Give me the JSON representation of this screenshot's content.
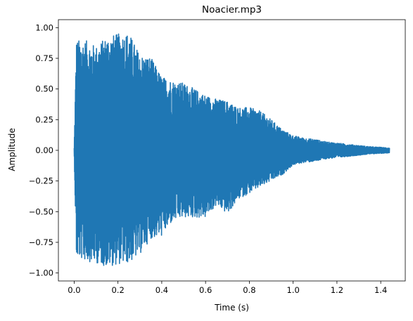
{
  "chart_data": {
    "type": "line",
    "title": "Noacier.mp3",
    "xlabel": "Time (s)",
    "ylabel": "Amplitude",
    "xlim": [
      -0.072,
      1.512
    ],
    "ylim": [
      -1.065,
      1.065
    ],
    "xticks": [
      0.0,
      0.2,
      0.4,
      0.6,
      0.8,
      1.0,
      1.2,
      1.4
    ],
    "xtick_labels": [
      "0.0",
      "0.2",
      "0.4",
      "0.6",
      "0.8",
      "1.0",
      "1.2",
      "1.4"
    ],
    "yticks": [
      -1.0,
      -0.75,
      -0.5,
      -0.25,
      0.0,
      0.25,
      0.5,
      0.75,
      1.0
    ],
    "ytick_labels": [
      "−1.00",
      "−0.75",
      "−0.50",
      "−0.25",
      "0.00",
      "0.25",
      "0.50",
      "0.75",
      "1.00"
    ],
    "grid": false,
    "series": [
      {
        "color": "#1f77b4",
        "duration_s": 1.44,
        "attack_s": 0.01,
        "peak_amplitude": 0.96,
        "end_amplitude": 0.02,
        "min_amplitude": -0.97,
        "envelope": [
          {
            "t": 0.0,
            "max": 0.02,
            "min": -0.02
          },
          {
            "t": 0.01,
            "max": 0.9,
            "min": -0.88
          },
          {
            "t": 0.05,
            "max": 0.9,
            "min": -0.9
          },
          {
            "t": 0.1,
            "max": 0.85,
            "min": -0.92
          },
          {
            "t": 0.15,
            "max": 0.93,
            "min": -0.95
          },
          {
            "t": 0.2,
            "max": 0.95,
            "min": -0.93
          },
          {
            "t": 0.25,
            "max": 0.96,
            "min": -0.92
          },
          {
            "t": 0.3,
            "max": 0.78,
            "min": -0.85
          },
          {
            "t": 0.35,
            "max": 0.76,
            "min": -0.72
          },
          {
            "t": 0.4,
            "max": 0.6,
            "min": -0.7
          },
          {
            "t": 0.45,
            "max": 0.57,
            "min": -0.58
          },
          {
            "t": 0.5,
            "max": 0.55,
            "min": -0.55
          },
          {
            "t": 0.55,
            "max": 0.5,
            "min": -0.55
          },
          {
            "t": 0.6,
            "max": 0.45,
            "min": -0.55
          },
          {
            "t": 0.65,
            "max": 0.42,
            "min": -0.45
          },
          {
            "t": 0.7,
            "max": 0.4,
            "min": -0.52
          },
          {
            "t": 0.75,
            "max": 0.35,
            "min": -0.4
          },
          {
            "t": 0.8,
            "max": 0.35,
            "min": -0.35
          },
          {
            "t": 0.85,
            "max": 0.32,
            "min": -0.3
          },
          {
            "t": 0.9,
            "max": 0.25,
            "min": -0.25
          },
          {
            "t": 0.95,
            "max": 0.17,
            "min": -0.2
          },
          {
            "t": 1.0,
            "max": 0.12,
            "min": -0.12
          },
          {
            "t": 1.05,
            "max": 0.1,
            "min": -0.1
          },
          {
            "t": 1.1,
            "max": 0.09,
            "min": -0.09
          },
          {
            "t": 1.15,
            "max": 0.07,
            "min": -0.07
          },
          {
            "t": 1.2,
            "max": 0.06,
            "min": -0.06
          },
          {
            "t": 1.25,
            "max": 0.05,
            "min": -0.05
          },
          {
            "t": 1.3,
            "max": 0.04,
            "min": -0.04
          },
          {
            "t": 1.35,
            "max": 0.03,
            "min": -0.03
          },
          {
            "t": 1.4,
            "max": 0.025,
            "min": -0.025
          },
          {
            "t": 1.44,
            "max": 0.02,
            "min": -0.02
          }
        ]
      }
    ]
  }
}
